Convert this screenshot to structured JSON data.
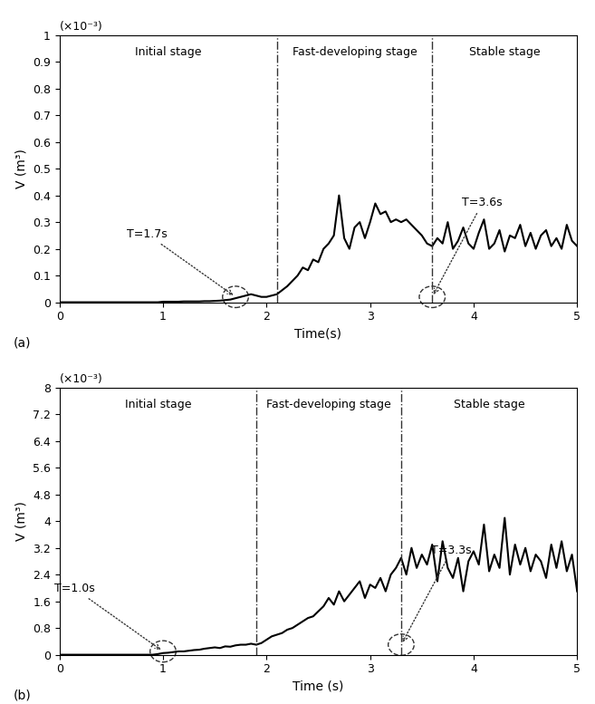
{
  "chart_data": [
    {
      "type": "line",
      "panel_label": "(a)",
      "y_scale_note": "(×10⁻³)",
      "x_label": "Time(s)",
      "y_label": "V (m³)",
      "stage_labels": [
        "Initial stage",
        "Fast-developing stage",
        "Stable stage"
      ],
      "stage_boundaries": [
        2.1,
        3.6
      ],
      "annotations": [
        {
          "text": "T=1.7s",
          "x": 1.7,
          "y": 0.02
        },
        {
          "text": "T=3.6s",
          "x": 3.6,
          "y": 0.02
        }
      ],
      "xlim": [
        0,
        5
      ],
      "xticks": [
        0,
        1,
        2,
        3,
        4,
        5
      ],
      "ylim": [
        0,
        1
      ],
      "yticks": [
        0,
        0.1,
        0.2,
        0.3,
        0.4,
        0.5,
        0.6,
        0.7,
        0.8,
        0.9,
        1
      ],
      "grid": false,
      "color": "#000000",
      "x": [
        0,
        0.05,
        0.1,
        0.15,
        0.2,
        0.25,
        0.3,
        0.35,
        0.4,
        0.45,
        0.5,
        0.55,
        0.6,
        0.65,
        0.7,
        0.75,
        0.8,
        0.85,
        0.9,
        0.95,
        1.0,
        1.05,
        1.1,
        1.15,
        1.2,
        1.25,
        1.3,
        1.35,
        1.4,
        1.45,
        1.5,
        1.55,
        1.6,
        1.65,
        1.7,
        1.75,
        1.8,
        1.85,
        1.9,
        1.95,
        2.0,
        2.05,
        2.1,
        2.15,
        2.2,
        2.25,
        2.3,
        2.35,
        2.4,
        2.45,
        2.5,
        2.55,
        2.6,
        2.65,
        2.7,
        2.75,
        2.8,
        2.85,
        2.9,
        2.95,
        3.0,
        3.05,
        3.1,
        3.15,
        3.2,
        3.25,
        3.3,
        3.35,
        3.4,
        3.45,
        3.5,
        3.55,
        3.6,
        3.65,
        3.7,
        3.75,
        3.8,
        3.85,
        3.9,
        3.95,
        4.0,
        4.05,
        4.1,
        4.15,
        4.2,
        4.25,
        4.3,
        4.35,
        4.4,
        4.45,
        4.5,
        4.55,
        4.6,
        4.65,
        4.7,
        4.75,
        4.8,
        4.85,
        4.9,
        4.95,
        5.0
      ],
      "values": [
        0,
        0,
        0,
        0,
        0,
        0,
        0,
        0,
        0,
        0,
        0,
        0,
        0,
        0,
        0,
        0,
        0,
        0,
        0,
        0,
        0.002,
        0.002,
        0.002,
        0.002,
        0.003,
        0.003,
        0.003,
        0.003,
        0.004,
        0.004,
        0.005,
        0.006,
        0.008,
        0.01,
        0.015,
        0.02,
        0.025,
        0.03,
        0.025,
        0.02,
        0.02,
        0.025,
        0.03,
        0.045,
        0.06,
        0.08,
        0.1,
        0.13,
        0.12,
        0.16,
        0.15,
        0.2,
        0.22,
        0.25,
        0.4,
        0.24,
        0.2,
        0.28,
        0.3,
        0.24,
        0.3,
        0.37,
        0.33,
        0.34,
        0.3,
        0.31,
        0.3,
        0.31,
        0.29,
        0.27,
        0.25,
        0.22,
        0.21,
        0.24,
        0.22,
        0.3,
        0.2,
        0.23,
        0.28,
        0.22,
        0.2,
        0.26,
        0.31,
        0.2,
        0.22,
        0.27,
        0.19,
        0.25,
        0.24,
        0.29,
        0.21,
        0.26,
        0.2,
        0.25,
        0.27,
        0.21,
        0.24,
        0.2,
        0.29,
        0.23,
        0.21
      ]
    },
    {
      "type": "line",
      "panel_label": "(b)",
      "y_scale_note": "(×10⁻³)",
      "x_label": "Time (s)",
      "y_label": "V (m³)",
      "stage_labels": [
        "Initial stage",
        "Fast-developing stage",
        "Stable stage"
      ],
      "stage_boundaries": [
        1.9,
        3.3
      ],
      "annotations": [
        {
          "text": "T=1.0s",
          "x": 1.0,
          "y": 0.1
        },
        {
          "text": "T=3.3s",
          "x": 3.3,
          "y": 0.3
        }
      ],
      "xlim": [
        0,
        5
      ],
      "xticks": [
        0,
        1,
        2,
        3,
        4,
        5
      ],
      "ylim": [
        0,
        8
      ],
      "yticks": [
        0,
        0.8,
        1.6,
        2.4,
        3.2,
        4,
        4.8,
        5.6,
        6.4,
        7.2,
        8
      ],
      "grid": false,
      "color": "#000000",
      "x": [
        0,
        0.05,
        0.1,
        0.15,
        0.2,
        0.25,
        0.3,
        0.35,
        0.4,
        0.45,
        0.5,
        0.55,
        0.6,
        0.65,
        0.7,
        0.75,
        0.8,
        0.85,
        0.9,
        0.95,
        1.0,
        1.05,
        1.1,
        1.15,
        1.2,
        1.25,
        1.3,
        1.35,
        1.4,
        1.45,
        1.5,
        1.55,
        1.6,
        1.65,
        1.7,
        1.75,
        1.8,
        1.85,
        1.9,
        1.95,
        2.0,
        2.05,
        2.1,
        2.15,
        2.2,
        2.25,
        2.3,
        2.35,
        2.4,
        2.45,
        2.5,
        2.55,
        2.6,
        2.65,
        2.7,
        2.75,
        2.8,
        2.85,
        2.9,
        2.95,
        3.0,
        3.05,
        3.1,
        3.15,
        3.2,
        3.25,
        3.3,
        3.35,
        3.4,
        3.45,
        3.5,
        3.55,
        3.6,
        3.65,
        3.7,
        3.75,
        3.8,
        3.85,
        3.9,
        3.95,
        4.0,
        4.05,
        4.1,
        4.15,
        4.2,
        4.25,
        4.3,
        4.35,
        4.4,
        4.45,
        4.5,
        4.55,
        4.6,
        4.65,
        4.7,
        4.75,
        4.8,
        4.85,
        4.9,
        4.95,
        5.0
      ],
      "values": [
        0,
        0,
        0,
        0,
        0,
        0,
        0,
        0,
        0,
        0,
        0,
        0,
        0,
        0,
        0,
        0,
        0,
        0,
        0,
        0.02,
        0.05,
        0.06,
        0.08,
        0.1,
        0.1,
        0.12,
        0.14,
        0.15,
        0.18,
        0.2,
        0.22,
        0.2,
        0.25,
        0.24,
        0.28,
        0.3,
        0.3,
        0.33,
        0.3,
        0.35,
        0.45,
        0.55,
        0.6,
        0.65,
        0.75,
        0.8,
        0.9,
        1.0,
        1.1,
        1.15,
        1.3,
        1.45,
        1.7,
        1.5,
        1.9,
        1.6,
        1.8,
        2.0,
        2.2,
        1.7,
        2.1,
        2.0,
        2.3,
        1.9,
        2.4,
        2.6,
        2.9,
        2.4,
        3.2,
        2.6,
        3.0,
        2.7,
        3.3,
        2.2,
        3.4,
        2.6,
        2.3,
        2.9,
        1.9,
        2.8,
        3.1,
        2.7,
        3.9,
        2.5,
        3.0,
        2.6,
        4.1,
        2.4,
        3.3,
        2.7,
        3.2,
        2.5,
        3.0,
        2.8,
        2.3,
        3.3,
        2.6,
        3.4,
        2.5,
        3.0,
        1.9
      ]
    }
  ]
}
